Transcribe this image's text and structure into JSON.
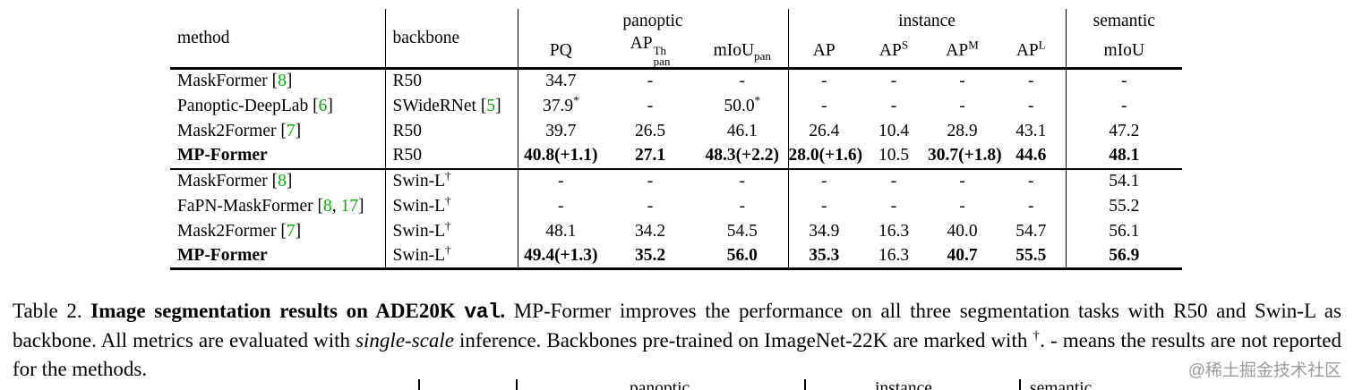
{
  "colors": {
    "citation_green": "#00b200",
    "rule_black": "#000000",
    "watermark_gray": "#9b9b9b"
  },
  "table": {
    "header": {
      "method_label": "method",
      "backbone_label": "backbone",
      "groups": [
        {
          "label": "panoptic",
          "columns": [
            {
              "base": "PQ"
            },
            {
              "base": "AP",
              "sup": "Th",
              "sub": "pan"
            },
            {
              "base": "mIoU",
              "sub": "pan"
            }
          ]
        },
        {
          "label": "instance",
          "columns": [
            {
              "base": "AP"
            },
            {
              "base": "AP",
              "sup": "S"
            },
            {
              "base": "AP",
              "sup": "M"
            },
            {
              "base": "AP",
              "sup": "L"
            }
          ]
        },
        {
          "label": "semantic",
          "columns": [
            {
              "base": "mIoU"
            }
          ]
        }
      ]
    },
    "rows": [
      {
        "method": {
          "name": "MaskFormer",
          "cites": [
            "8"
          ],
          "bold": false
        },
        "backbone": {
          "name": "R50",
          "cites": [],
          "sup": ""
        },
        "section_end": false,
        "cells": [
          {
            "t": "34.7"
          },
          {
            "t": "-"
          },
          {
            "t": "-"
          },
          {
            "t": "-"
          },
          {
            "t": "-"
          },
          {
            "t": "-"
          },
          {
            "t": "-"
          },
          {
            "t": "-"
          }
        ]
      },
      {
        "method": {
          "name": "Panoptic-DeepLab",
          "cites": [
            "6"
          ],
          "bold": false
        },
        "backbone": {
          "name": "SWideRNet",
          "cites": [
            "5"
          ],
          "sup": ""
        },
        "section_end": false,
        "cells": [
          {
            "t": "37.9",
            "sup": "*"
          },
          {
            "t": "-"
          },
          {
            "t": "50.0",
            "sup": "*"
          },
          {
            "t": "-"
          },
          {
            "t": "-"
          },
          {
            "t": "-"
          },
          {
            "t": "-"
          },
          {
            "t": "-"
          }
        ]
      },
      {
        "method": {
          "name": "Mask2Former",
          "cites": [
            "7"
          ],
          "bold": false
        },
        "backbone": {
          "name": "R50",
          "cites": [],
          "sup": ""
        },
        "section_end": false,
        "cells": [
          {
            "t": "39.7"
          },
          {
            "t": "26.5"
          },
          {
            "t": "46.1"
          },
          {
            "t": "26.4"
          },
          {
            "t": "10.4"
          },
          {
            "t": "28.9"
          },
          {
            "t": "43.1"
          },
          {
            "t": "47.2"
          }
        ]
      },
      {
        "method": {
          "name": "MP-Former",
          "cites": [],
          "bold": true
        },
        "backbone": {
          "name": "R50",
          "cites": [],
          "sup": ""
        },
        "section_end": true,
        "cells": [
          {
            "t": "40.8(+1.1)",
            "b": true
          },
          {
            "t": "27.1",
            "b": true
          },
          {
            "t": "48.3(+2.2)",
            "b": true
          },
          {
            "t": "28.0(+1.6)",
            "b": true
          },
          {
            "t": "10.5"
          },
          {
            "t": "30.7(+1.8)",
            "b": true
          },
          {
            "t": "44.6",
            "b": true
          },
          {
            "t": "48.1",
            "b": true
          }
        ]
      },
      {
        "method": {
          "name": "MaskFormer",
          "cites": [
            "8"
          ],
          "bold": false
        },
        "backbone": {
          "name": "Swin-L",
          "cites": [],
          "sup": "†"
        },
        "section_end": false,
        "cells": [
          {
            "t": "-"
          },
          {
            "t": "-"
          },
          {
            "t": "-"
          },
          {
            "t": "-"
          },
          {
            "t": "-"
          },
          {
            "t": "-"
          },
          {
            "t": "-"
          },
          {
            "t": "54.1"
          }
        ]
      },
      {
        "method": {
          "name": "FaPN-MaskFormer",
          "cites": [
            "8",
            "17"
          ],
          "bold": false
        },
        "backbone": {
          "name": "Swin-L",
          "cites": [],
          "sup": "†"
        },
        "section_end": false,
        "cells": [
          {
            "t": "-"
          },
          {
            "t": "-"
          },
          {
            "t": "-"
          },
          {
            "t": "-"
          },
          {
            "t": "-"
          },
          {
            "t": "-"
          },
          {
            "t": "-"
          },
          {
            "t": "55.2"
          }
        ]
      },
      {
        "method": {
          "name": "Mask2Former",
          "cites": [
            "7"
          ],
          "bold": false
        },
        "backbone": {
          "name": "Swin-L",
          "cites": [],
          "sup": "†"
        },
        "section_end": false,
        "cells": [
          {
            "t": "48.1"
          },
          {
            "t": "34.2"
          },
          {
            "t": "54.5"
          },
          {
            "t": "34.9"
          },
          {
            "t": "16.3"
          },
          {
            "t": "40.0"
          },
          {
            "t": "54.7"
          },
          {
            "t": "56.1"
          }
        ]
      },
      {
        "method": {
          "name": "MP-Former",
          "cites": [],
          "bold": true
        },
        "backbone": {
          "name": "Swin-L",
          "cites": [],
          "sup": "†"
        },
        "section_end": false,
        "cells": [
          {
            "t": "49.4(+1.3)",
            "b": true
          },
          {
            "t": "35.2",
            "b": true
          },
          {
            "t": "56.0",
            "b": true
          },
          {
            "t": "35.3",
            "b": true
          },
          {
            "t": "16.3"
          },
          {
            "t": "40.7",
            "b": true
          },
          {
            "t": "55.5",
            "b": true
          },
          {
            "t": "56.9",
            "b": true
          }
        ]
      }
    ]
  },
  "caption": {
    "label": "Table 2. ",
    "title_bold": "Image segmentation results on ADE20K ",
    "title_mono": "val",
    "title_period": ".",
    "body_1": " MP-Former improves the performance on all three segmentation tasks with R50 and Swin-L as backbone. All metrics are evaluated with ",
    "italic": "single-scale",
    "body_2": " inference. Backbones pre-trained on ImageNet-22K are marked with ",
    "dagger": "†",
    "body_3": ". - means the results are not reported for the methods."
  },
  "watermark": "@稀土掘金技术社区",
  "next_table_partial": {
    "labels": [
      "panoptic",
      "instance",
      "semantic"
    ]
  }
}
